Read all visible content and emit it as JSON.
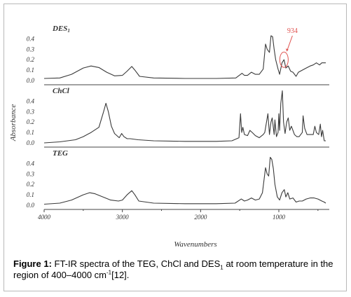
{
  "chart_data": {
    "type": "line",
    "xlabel": "Wavenumbers",
    "ylabel": "Absorbance",
    "xlim": [
      4000,
      400
    ],
    "x_ticks": [
      "4000",
      "3000",
      "2000",
      "1000"
    ],
    "panels": [
      {
        "name": "DES",
        "name_sub": "1",
        "ylim": [
          0.0,
          0.45
        ],
        "y_ticks": [
          "0.4",
          "0.3",
          "0.2",
          "0.1",
          "0.0"
        ],
        "annotation": {
          "text": "934",
          "x": 934,
          "color": "#e0524f"
        },
        "points": [
          [
            4000,
            0.02
          ],
          [
            3800,
            0.025
          ],
          [
            3650,
            0.06
          ],
          [
            3500,
            0.12
          ],
          [
            3400,
            0.14
          ],
          [
            3300,
            0.125
          ],
          [
            3200,
            0.08
          ],
          [
            3100,
            0.045
          ],
          [
            3000,
            0.05
          ],
          [
            2940,
            0.09
          ],
          [
            2880,
            0.135
          ],
          [
            2840,
            0.1
          ],
          [
            2780,
            0.04
          ],
          [
            2600,
            0.025
          ],
          [
            2200,
            0.02
          ],
          [
            1800,
            0.02
          ],
          [
            1550,
            0.025
          ],
          [
            1470,
            0.07
          ],
          [
            1440,
            0.05
          ],
          [
            1400,
            0.05
          ],
          [
            1350,
            0.08
          ],
          [
            1300,
            0.06
          ],
          [
            1250,
            0.06
          ],
          [
            1200,
            0.11
          ],
          [
            1170,
            0.35
          ],
          [
            1150,
            0.3
          ],
          [
            1120,
            0.27
          ],
          [
            1100,
            0.43
          ],
          [
            1080,
            0.42
          ],
          [
            1060,
            0.3
          ],
          [
            1040,
            0.2
          ],
          [
            1010,
            0.11
          ],
          [
            990,
            0.06
          ],
          [
            960,
            0.17
          ],
          [
            934,
            0.2
          ],
          [
            910,
            0.12
          ],
          [
            880,
            0.14
          ],
          [
            850,
            0.09
          ],
          [
            820,
            0.08
          ],
          [
            780,
            0.04
          ],
          [
            750,
            0.08
          ],
          [
            700,
            0.1
          ],
          [
            650,
            0.12
          ],
          [
            600,
            0.14
          ],
          [
            560,
            0.15
          ],
          [
            520,
            0.17
          ],
          [
            480,
            0.15
          ],
          [
            450,
            0.17
          ],
          [
            420,
            0.17
          ],
          [
            400,
            0.17
          ]
        ]
      },
      {
        "name": "ChCl",
        "name_sub": "",
        "ylim": [
          0.0,
          0.45
        ],
        "y_ticks": [
          "0.4",
          "0.3",
          "0.2",
          "0.1",
          "0.0"
        ],
        "points": [
          [
            4000,
            0.0
          ],
          [
            3800,
            0.01
          ],
          [
            3600,
            0.03
          ],
          [
            3500,
            0.06
          ],
          [
            3400,
            0.1
          ],
          [
            3300,
            0.15
          ],
          [
            3240,
            0.3
          ],
          [
            3210,
            0.38
          ],
          [
            3180,
            0.3
          ],
          [
            3140,
            0.16
          ],
          [
            3100,
            0.09
          ],
          [
            3040,
            0.05
          ],
          [
            3010,
            0.09
          ],
          [
            2980,
            0.06
          ],
          [
            2940,
            0.04
          ],
          [
            2900,
            0.04
          ],
          [
            2800,
            0.03
          ],
          [
            2600,
            0.02
          ],
          [
            2200,
            0.015
          ],
          [
            1800,
            0.015
          ],
          [
            1600,
            0.02
          ],
          [
            1510,
            0.05
          ],
          [
            1490,
            0.28
          ],
          [
            1475,
            0.1
          ],
          [
            1460,
            0.15
          ],
          [
            1440,
            0.08
          ],
          [
            1400,
            0.07
          ],
          [
            1370,
            0.12
          ],
          [
            1340,
            0.1
          ],
          [
            1300,
            0.07
          ],
          [
            1250,
            0.05
          ],
          [
            1200,
            0.08
          ],
          [
            1180,
            0.1
          ],
          [
            1140,
            0.28
          ],
          [
            1120,
            0.08
          ],
          [
            1100,
            0.2
          ],
          [
            1085,
            0.24
          ],
          [
            1060,
            0.08
          ],
          [
            1050,
            0.22
          ],
          [
            1030,
            0.06
          ],
          [
            1010,
            0.1
          ],
          [
            1000,
            0.28
          ],
          [
            990,
            0.12
          ],
          [
            975,
            0.38
          ],
          [
            955,
            0.5
          ],
          [
            940,
            0.2
          ],
          [
            920,
            0.09
          ],
          [
            900,
            0.2
          ],
          [
            880,
            0.24
          ],
          [
            860,
            0.12
          ],
          [
            840,
            0.16
          ],
          [
            800,
            0.08
          ],
          [
            770,
            0.06
          ],
          [
            740,
            0.06
          ],
          [
            700,
            0.1
          ],
          [
            690,
            0.26
          ],
          [
            670,
            0.14
          ],
          [
            640,
            0.08
          ],
          [
            600,
            0.08
          ],
          [
            560,
            0.08
          ],
          [
            540,
            0.16
          ],
          [
            520,
            0.1
          ],
          [
            490,
            0.08
          ],
          [
            470,
            0.18
          ],
          [
            455,
            0.06
          ],
          [
            440,
            0.12
          ],
          [
            420,
            0.02
          ],
          [
            400,
            0.02
          ]
        ]
      },
      {
        "name": "TEG",
        "name_sub": "",
        "ylim": [
          0.0,
          0.45
        ],
        "y_ticks": [
          "0.4",
          "0.3",
          "0.2",
          "0.1",
          "0.0"
        ],
        "points": [
          [
            4000,
            0.01
          ],
          [
            3800,
            0.02
          ],
          [
            3650,
            0.05
          ],
          [
            3500,
            0.1
          ],
          [
            3420,
            0.12
          ],
          [
            3350,
            0.11
          ],
          [
            3250,
            0.08
          ],
          [
            3150,
            0.05
          ],
          [
            3050,
            0.04
          ],
          [
            3000,
            0.05
          ],
          [
            2940,
            0.1
          ],
          [
            2880,
            0.14
          ],
          [
            2840,
            0.1
          ],
          [
            2790,
            0.04
          ],
          [
            2600,
            0.02
          ],
          [
            2200,
            0.015
          ],
          [
            1800,
            0.015
          ],
          [
            1560,
            0.02
          ],
          [
            1480,
            0.06
          ],
          [
            1440,
            0.04
          ],
          [
            1400,
            0.05
          ],
          [
            1350,
            0.07
          ],
          [
            1300,
            0.05
          ],
          [
            1250,
            0.06
          ],
          [
            1210,
            0.12
          ],
          [
            1170,
            0.36
          ],
          [
            1150,
            0.3
          ],
          [
            1130,
            0.28
          ],
          [
            1110,
            0.46
          ],
          [
            1090,
            0.44
          ],
          [
            1070,
            0.35
          ],
          [
            1050,
            0.2
          ],
          [
            1020,
            0.08
          ],
          [
            990,
            0.05
          ],
          [
            960,
            0.12
          ],
          [
            930,
            0.15
          ],
          [
            910,
            0.08
          ],
          [
            885,
            0.12
          ],
          [
            860,
            0.06
          ],
          [
            820,
            0.07
          ],
          [
            780,
            0.03
          ],
          [
            740,
            0.04
          ],
          [
            700,
            0.04
          ],
          [
            650,
            0.06
          ],
          [
            600,
            0.07
          ],
          [
            550,
            0.07
          ],
          [
            500,
            0.06
          ],
          [
            450,
            0.04
          ],
          [
            420,
            0.03
          ],
          [
            400,
            0.02
          ]
        ]
      }
    ]
  },
  "caption": {
    "lead": "Figure 1:",
    "text_1": " FT-IR spectra of the TEG, ChCl and DES",
    "sub_1": "1",
    "text_2": " at room temperature in the region of 400–4000 cm",
    "sup_1": "-1",
    "text_3": "[12]."
  }
}
